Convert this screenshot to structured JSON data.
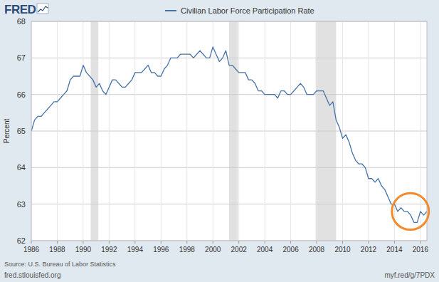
{
  "chart_data": {
    "type": "line",
    "logo": "FRED",
    "ylabel": "Percent",
    "source": "Source: U.S. Bureau of Labor Statistics",
    "site": "fred.stlouisfed.org",
    "link": "myf.red/g/7PDX",
    "xlim": [
      1986,
      2016.5
    ],
    "xticks": [
      1986,
      1988,
      1990,
      1992,
      1994,
      1996,
      1998,
      2000,
      2002,
      2004,
      2006,
      2008,
      2010,
      2012,
      2014,
      2016
    ],
    "ylim": [
      62,
      68
    ],
    "yticks": [
      62,
      63,
      64,
      65,
      66,
      67,
      68
    ],
    "grid": true,
    "legend": "top",
    "shaded": [
      [
        1990.58,
        1991.17
      ],
      [
        2001.25,
        2001.92
      ],
      [
        2007.92,
        2009.5
      ]
    ],
    "highlight": {
      "x": [
        2013.8,
        2016.65
      ],
      "y": [
        62.3,
        63.3
      ],
      "color": "#f28a2e"
    },
    "x": [
      1986,
      1986.25,
      1986.5,
      1986.75,
      1987,
      1987.25,
      1987.5,
      1987.75,
      1988,
      1988.25,
      1988.5,
      1988.75,
      1989,
      1989.25,
      1989.5,
      1989.75,
      1990,
      1990.25,
      1990.5,
      1990.75,
      1991,
      1991.25,
      1991.5,
      1991.75,
      1992,
      1992.25,
      1992.5,
      1992.75,
      1993,
      1993.25,
      1993.5,
      1993.75,
      1994,
      1994.25,
      1994.5,
      1994.75,
      1995,
      1995.25,
      1995.5,
      1995.75,
      1996,
      1996.25,
      1996.5,
      1996.75,
      1997,
      1997.25,
      1997.5,
      1997.75,
      1998,
      1998.25,
      1998.5,
      1998.75,
      1999,
      1999.25,
      1999.5,
      1999.75,
      2000,
      2000.25,
      2000.5,
      2000.75,
      2001,
      2001.25,
      2001.5,
      2001.75,
      2002,
      2002.25,
      2002.5,
      2002.75,
      2003,
      2003.25,
      2003.5,
      2003.75,
      2004,
      2004.25,
      2004.5,
      2004.75,
      2005,
      2005.25,
      2005.5,
      2005.75,
      2006,
      2006.25,
      2006.5,
      2006.75,
      2007,
      2007.25,
      2007.5,
      2007.75,
      2008,
      2008.25,
      2008.5,
      2008.75,
      2009,
      2009.25,
      2009.5,
      2009.75,
      2010,
      2010.25,
      2010.5,
      2010.75,
      2011,
      2011.25,
      2011.5,
      2011.75,
      2012,
      2012.25,
      2012.5,
      2012.75,
      2013,
      2013.25,
      2013.5,
      2013.75,
      2014,
      2014.25,
      2014.5,
      2014.75,
      2015,
      2015.25,
      2015.5,
      2015.75,
      2016,
      2016.25,
      2016.5
    ],
    "series": [
      {
        "name": "Civilian Labor Force Participation Rate",
        "color": "#4572a7",
        "values": [
          65.0,
          65.3,
          65.4,
          65.4,
          65.5,
          65.6,
          65.7,
          65.8,
          65.8,
          65.9,
          66.0,
          66.1,
          66.4,
          66.5,
          66.5,
          66.5,
          66.8,
          66.6,
          66.5,
          66.4,
          66.2,
          66.3,
          66.1,
          66.0,
          66.2,
          66.4,
          66.4,
          66.3,
          66.2,
          66.2,
          66.3,
          66.4,
          66.6,
          66.6,
          66.6,
          66.7,
          66.8,
          66.6,
          66.6,
          66.5,
          66.5,
          66.7,
          66.8,
          67.0,
          67.0,
          67.0,
          67.1,
          67.1,
          67.1,
          67.1,
          67.0,
          67.1,
          67.2,
          67.1,
          67.0,
          67.0,
          67.3,
          67.1,
          66.9,
          67.0,
          67.2,
          66.8,
          66.8,
          66.7,
          66.6,
          66.6,
          66.6,
          66.4,
          66.4,
          66.3,
          66.1,
          66.1,
          66.0,
          66.0,
          66.0,
          66.0,
          65.9,
          66.1,
          66.1,
          66.0,
          66.0,
          66.1,
          66.2,
          66.3,
          66.2,
          66.0,
          66.0,
          66.0,
          66.1,
          66.1,
          66.1,
          65.9,
          65.7,
          65.8,
          65.3,
          65.1,
          64.8,
          64.9,
          64.7,
          64.4,
          64.2,
          64.1,
          64.1,
          64.0,
          63.7,
          63.7,
          63.6,
          63.7,
          63.5,
          63.4,
          63.2,
          63.0,
          63.0,
          62.8,
          62.9,
          62.8,
          62.8,
          62.7,
          62.5,
          62.5,
          62.8,
          62.7,
          62.8
        ]
      }
    ]
  }
}
